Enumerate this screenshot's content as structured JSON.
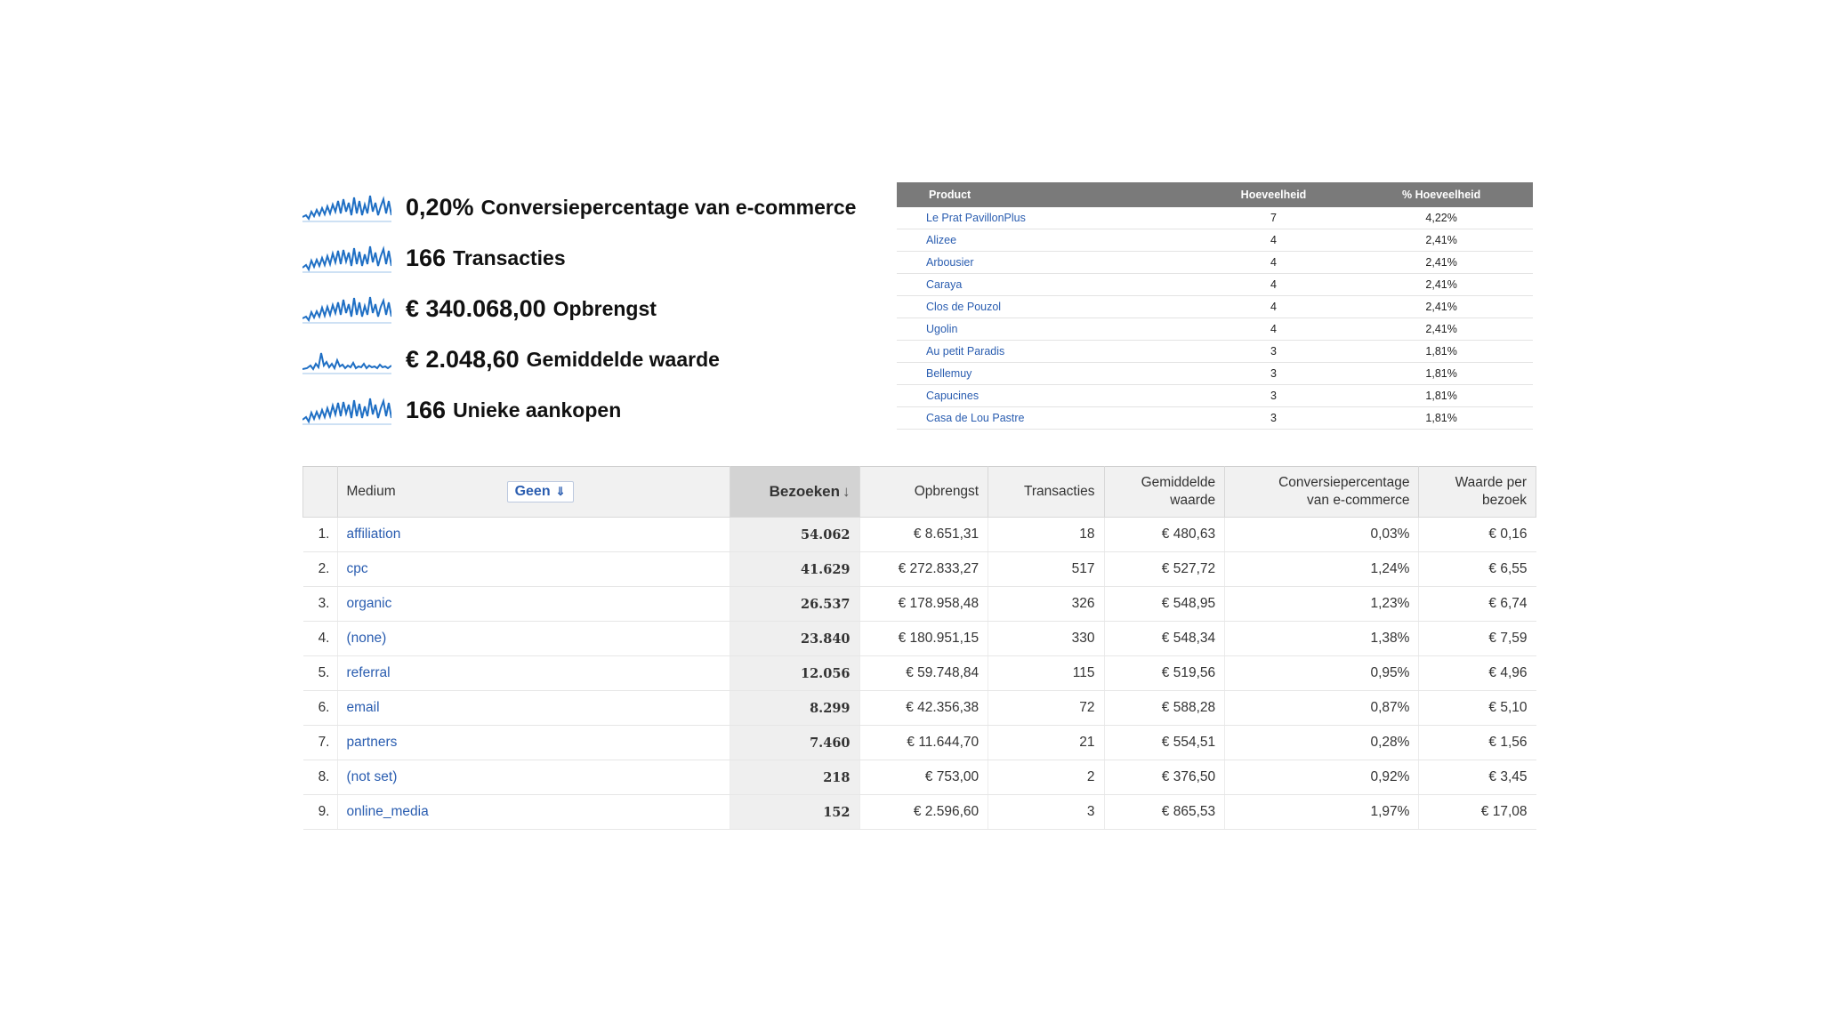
{
  "metrics": [
    {
      "value": "0,20%",
      "label": "Conversiepercentage van e-commerce",
      "spark_icon": "sparkline-icon"
    },
    {
      "value": "166",
      "label": "Transacties",
      "spark_icon": "sparkline-icon"
    },
    {
      "value": "€ 340.068,00",
      "label": "Opbrengst",
      "spark_icon": "sparkline-icon"
    },
    {
      "value": "€ 2.048,60",
      "label": "Gemiddelde waarde",
      "spark_icon": "sparkline-icon"
    },
    {
      "value": "166",
      "label": "Unieke aankopen",
      "spark_icon": "sparkline-icon"
    }
  ],
  "product_table": {
    "headers": {
      "product": "Product",
      "quantity": "Hoeveelheid",
      "pct": "% Hoeveelheid"
    },
    "rows": [
      {
        "product": "Le Prat PavillonPlus",
        "quantity": "7",
        "pct": "4,22%"
      },
      {
        "product": "Alizee",
        "quantity": "4",
        "pct": "2,41%"
      },
      {
        "product": "Arbousier",
        "quantity": "4",
        "pct": "2,41%"
      },
      {
        "product": "Caraya",
        "quantity": "4",
        "pct": "2,41%"
      },
      {
        "product": "Clos de Pouzol",
        "quantity": "4",
        "pct": "2,41%"
      },
      {
        "product": "Ugolin",
        "quantity": "4",
        "pct": "2,41%"
      },
      {
        "product": "Au petit Paradis",
        "quantity": "3",
        "pct": "1,81%"
      },
      {
        "product": "Bellemuy",
        "quantity": "3",
        "pct": "1,81%"
      },
      {
        "product": "Capucines",
        "quantity": "3",
        "pct": "1,81%"
      },
      {
        "product": "Casa de Lou Pastre",
        "quantity": "3",
        "pct": "1,81%"
      }
    ]
  },
  "main_table": {
    "headers": {
      "medium": "Medium",
      "secondary_dimension": "Geen",
      "visits": "Bezoeken",
      "revenue": "Opbrengst",
      "transactions": "Transacties",
      "avg_value_1": "Gemiddelde",
      "avg_value_2": "waarde",
      "conversion_1": "Conversiepercentage",
      "conversion_2": "van e-commerce",
      "per_visit_1": "Waarde per",
      "per_visit_2": "bezoek"
    },
    "sort_icon": "arrow-down-icon",
    "rows": [
      {
        "idx": "1.",
        "medium": "affiliation",
        "visits": "54.062",
        "revenue": "€ 8.651,31",
        "transactions": "18",
        "avg": "€ 480,63",
        "conv": "0,03%",
        "per_visit": "€ 0,16"
      },
      {
        "idx": "2.",
        "medium": "cpc",
        "visits": "41.629",
        "revenue": "€ 272.833,27",
        "transactions": "517",
        "avg": "€ 527,72",
        "conv": "1,24%",
        "per_visit": "€ 6,55"
      },
      {
        "idx": "3.",
        "medium": "organic",
        "visits": "26.537",
        "revenue": "€ 178.958,48",
        "transactions": "326",
        "avg": "€ 548,95",
        "conv": "1,23%",
        "per_visit": "€ 6,74"
      },
      {
        "idx": "4.",
        "medium": "(none)",
        "visits": "23.840",
        "revenue": "€ 180.951,15",
        "transactions": "330",
        "avg": "€ 548,34",
        "conv": "1,38%",
        "per_visit": "€ 7,59"
      },
      {
        "idx": "5.",
        "medium": "referral",
        "visits": "12.056",
        "revenue": "€ 59.748,84",
        "transactions": "115",
        "avg": "€ 519,56",
        "conv": "0,95%",
        "per_visit": "€ 4,96"
      },
      {
        "idx": "6.",
        "medium": "email",
        "visits": "8.299",
        "revenue": "€ 42.356,38",
        "transactions": "72",
        "avg": "€ 588,28",
        "conv": "0,87%",
        "per_visit": "€ 5,10"
      },
      {
        "idx": "7.",
        "medium": "partners",
        "visits": "7.460",
        "revenue": "€ 11.644,70",
        "transactions": "21",
        "avg": "€ 554,51",
        "conv": "0,28%",
        "per_visit": "€ 1,56"
      },
      {
        "idx": "8.",
        "medium": "(not set)",
        "visits": "218",
        "revenue": "€ 753,00",
        "transactions": "2",
        "avg": "€ 376,50",
        "conv": "0,92%",
        "per_visit": "€ 3,45"
      },
      {
        "idx": "9.",
        "medium": "online_media",
        "visits": "152",
        "revenue": "€ 2.596,60",
        "transactions": "3",
        "avg": "€ 865,53",
        "conv": "1,97%",
        "per_visit": "€ 17,08"
      }
    ]
  },
  "colors": {
    "link": "#2a5db0",
    "sparkline": "#1f6fc4",
    "header_dark": "#7a7a7a"
  }
}
